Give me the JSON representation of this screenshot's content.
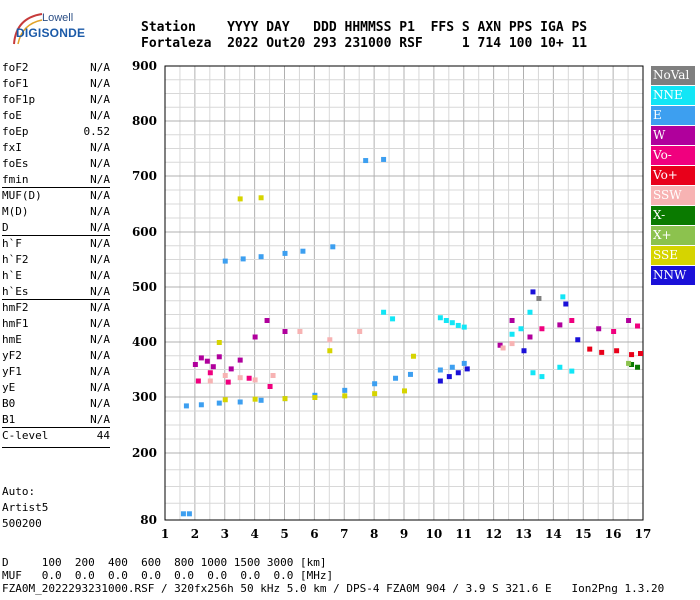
{
  "logo": {
    "top": "Lowell",
    "main": "DIGISONDE"
  },
  "header": {
    "line1": "Station    YYYY DAY   DDD HHMMSS P1  FFS S AXN PPS IGA PS",
    "line2": "Fortaleza  2022 Out20 293 231000 RSF     1 714 100 10+ 11"
  },
  "params": {
    "group1": [
      {
        "label": "foF2",
        "value": "N/A"
      },
      {
        "label": "foF1",
        "value": "N/A"
      },
      {
        "label": "foF1p",
        "value": "N/A"
      },
      {
        "label": "foE",
        "value": "N/A"
      },
      {
        "label": "foEp",
        "value": "0.52"
      },
      {
        "label": "fxI",
        "value": "N/A"
      },
      {
        "label": "foEs",
        "value": "N/A"
      },
      {
        "label": "fmin",
        "value": "N/A"
      }
    ],
    "group2": [
      {
        "label": "MUF(D)",
        "value": "N/A"
      },
      {
        "label": "M(D)",
        "value": "N/A"
      },
      {
        "label": "D",
        "value": "N/A"
      }
    ],
    "group3": [
      {
        "label": "h`F",
        "value": "N/A"
      },
      {
        "label": "h`F2",
        "value": "N/A"
      },
      {
        "label": "h`E",
        "value": "N/A"
      },
      {
        "label": "h`Es",
        "value": "N/A"
      }
    ],
    "group4": [
      {
        "label": "hmF2",
        "value": "N/A"
      },
      {
        "label": "hmF1",
        "value": "N/A"
      },
      {
        "label": "hmE",
        "value": "N/A"
      },
      {
        "label": "yF2",
        "value": "N/A"
      },
      {
        "label": "yF1",
        "value": "N/A"
      },
      {
        "label": "yE",
        "value": "N/A"
      },
      {
        "label": "B0",
        "value": "N/A"
      },
      {
        "label": "B1",
        "value": "N/A"
      }
    ],
    "group5": [
      {
        "label": "C-level",
        "value": "44"
      }
    ]
  },
  "auto": {
    "line1": "Auto:",
    "line2": "Artist5",
    "line3": "500200"
  },
  "legend": [
    {
      "label": "NoVal",
      "color": "#7f7f7f"
    },
    {
      "label": "NNE",
      "color": "#12e6f6"
    },
    {
      "label": "E",
      "color": "#3d9ff0"
    },
    {
      "label": "W",
      "color": "#b0009c"
    },
    {
      "label": "Vo-",
      "color": "#f0007e"
    },
    {
      "label": "Vo+",
      "color": "#e8001a"
    },
    {
      "label": "SSW",
      "color": "#f7b3b3"
    },
    {
      "label": "X-",
      "color": "#0a7a00"
    },
    {
      "label": "X+",
      "color": "#8cc24e"
    },
    {
      "label": "SSE",
      "color": "#d6d400"
    },
    {
      "label": "NNW",
      "color": "#1a10d8"
    }
  ],
  "footer": {
    "line1": "D     100  200  400  600  800 1000 1500 3000 [km]",
    "line2": "MUF   0.0  0.0  0.0  0.0  0.0  0.0  0.0  0.0 [MHz]",
    "line3": "FZA0M_2022293231000.RSF / 320fx256h 50 kHz 5.0 km / DPS-4 FZA0M 904 / 3.9 S 321.6 E   Ion2Png 1.3.20"
  },
  "chart_data": {
    "type": "scatter",
    "title": "",
    "xlabel": "",
    "ylabel": "",
    "xlim": [
      1,
      17
    ],
    "ylim": [
      80,
      900
    ],
    "xticks": [
      1,
      2,
      3,
      4,
      5,
      6,
      7,
      8,
      9,
      10,
      11,
      12,
      13,
      14,
      15,
      16,
      17
    ],
    "yticks": [
      80,
      200,
      300,
      400,
      500,
      600,
      700,
      800,
      900
    ],
    "grid": true,
    "legend_position": "right",
    "series": [
      {
        "name": "E",
        "color": "#3d9ff0",
        "points": [
          [
            1.7,
            285
          ],
          [
            2.2,
            287
          ],
          [
            2.8,
            290
          ],
          [
            3.5,
            292
          ],
          [
            4.2,
            295
          ],
          [
            5,
            298
          ],
          [
            6,
            304
          ],
          [
            7,
            313
          ],
          [
            8,
            325
          ],
          [
            8.7,
            335
          ],
          [
            9.2,
            342
          ],
          [
            10.2,
            350
          ],
          [
            10.6,
            355
          ],
          [
            11,
            362
          ],
          [
            3,
            548
          ],
          [
            3.6,
            552
          ],
          [
            4.2,
            556
          ],
          [
            5,
            562
          ],
          [
            5.6,
            566
          ],
          [
            6.6,
            574
          ],
          [
            7.7,
            729
          ],
          [
            8.3,
            731
          ],
          [
            1.6,
            92
          ],
          [
            1.8,
            92
          ]
        ]
      },
      {
        "name": "SSE",
        "color": "#d6d400",
        "points": [
          [
            3,
            296
          ],
          [
            4,
            297
          ],
          [
            5,
            298
          ],
          [
            6,
            300
          ],
          [
            7,
            303
          ],
          [
            8,
            307
          ],
          [
            9,
            312
          ],
          [
            3.5,
            660
          ],
          [
            4.2,
            662
          ],
          [
            9.3,
            375
          ],
          [
            2.8,
            400
          ],
          [
            6.5,
            385
          ]
        ]
      },
      {
        "name": "NNE",
        "color": "#12e6f6",
        "points": [
          [
            10.2,
            445
          ],
          [
            10.4,
            440
          ],
          [
            10.6,
            436
          ],
          [
            10.8,
            431
          ],
          [
            11,
            428
          ],
          [
            12.6,
            415
          ],
          [
            12.9,
            425
          ],
          [
            13.3,
            345
          ],
          [
            13.6,
            338
          ],
          [
            14.2,
            355
          ],
          [
            14.6,
            348
          ],
          [
            8.3,
            455
          ],
          [
            8.6,
            443
          ],
          [
            13.2,
            455
          ],
          [
            14.3,
            483
          ]
        ]
      },
      {
        "name": "NNW",
        "color": "#1a10d8",
        "points": [
          [
            10.2,
            330
          ],
          [
            10.5,
            338
          ],
          [
            10.8,
            345
          ],
          [
            11.1,
            352
          ],
          [
            13.3,
            492
          ],
          [
            14.4,
            470
          ],
          [
            13,
            385
          ],
          [
            14.8,
            405
          ]
        ]
      },
      {
        "name": "W",
        "color": "#b0009c",
        "points": [
          [
            2,
            360
          ],
          [
            2.2,
            372
          ],
          [
            2.4,
            366
          ],
          [
            2.6,
            356
          ],
          [
            2.8,
            374
          ],
          [
            3.2,
            352
          ],
          [
            3.5,
            368
          ],
          [
            4,
            410
          ],
          [
            4.4,
            440
          ],
          [
            5,
            420
          ],
          [
            12.2,
            395
          ],
          [
            12.6,
            440
          ],
          [
            13.2,
            410
          ],
          [
            14.2,
            432
          ],
          [
            15.5,
            425
          ],
          [
            16.5,
            440
          ]
        ]
      },
      {
        "name": "Vo-",
        "color": "#f0007e",
        "points": [
          [
            2.1,
            330
          ],
          [
            2.5,
            345
          ],
          [
            3.1,
            328
          ],
          [
            3.8,
            335
          ],
          [
            4.5,
            320
          ],
          [
            13.6,
            425
          ],
          [
            14.6,
            440
          ],
          [
            16,
            420
          ],
          [
            16.8,
            430
          ]
        ]
      },
      {
        "name": "Vo+",
        "color": "#e8001a",
        "points": [
          [
            15.2,
            388
          ],
          [
            15.6,
            382
          ],
          [
            16.1,
            385
          ],
          [
            16.6,
            378
          ],
          [
            16.9,
            380
          ]
        ]
      },
      {
        "name": "SSW",
        "color": "#f7b3b3",
        "points": [
          [
            2.5,
            330
          ],
          [
            3,
            340
          ],
          [
            3.5,
            336
          ],
          [
            4,
            332
          ],
          [
            4.6,
            340
          ],
          [
            5.5,
            420
          ],
          [
            6.5,
            405
          ],
          [
            7.5,
            420
          ],
          [
            12.3,
            390
          ],
          [
            12.6,
            398
          ]
        ]
      },
      {
        "name": "X-",
        "color": "#0a7a00",
        "points": [
          [
            16.6,
            360
          ],
          [
            16.8,
            355
          ]
        ]
      },
      {
        "name": "X+",
        "color": "#8cc24e",
        "points": [
          [
            16.5,
            362
          ]
        ]
      },
      {
        "name": "NoVal",
        "color": "#7f7f7f",
        "points": [
          [
            13.5,
            480
          ]
        ]
      }
    ]
  }
}
